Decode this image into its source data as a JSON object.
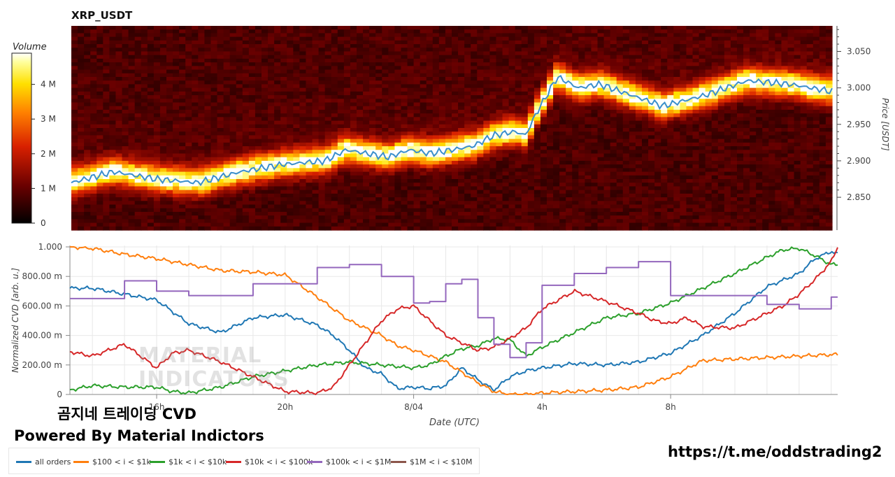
{
  "colors": {
    "all_orders": "#1f77b4",
    "b100_1k": "#ff7f0e",
    "b1k_10k": "#2ca02c",
    "b10k_100k": "#d62728",
    "b100k_1m": "#9467bd",
    "b1m_10m": "#8c564b",
    "price_line": "#3b8fcc",
    "heatmap_low": "#000000",
    "heatmap_high": "#ffffff"
  },
  "chart_data": [
    {
      "type": "heatmap",
      "title": "XRP_USDT",
      "ylabel": "Price [USDT]",
      "ylim": [
        2.805,
        3.085
      ],
      "yticks": [
        "2.850",
        "2.900",
        "2.950",
        "3.000",
        "3.050"
      ],
      "colorbar": {
        "title": "Volume",
        "range": [
          0,
          4.9
        ],
        "ticks": [
          "0",
          "1 M",
          "2 M",
          "3 M",
          "4 M"
        ]
      },
      "price_series": {
        "x": [
          0,
          2,
          4,
          6,
          8,
          10,
          12,
          13,
          14,
          15,
          16,
          17,
          18,
          19,
          20,
          21,
          21.5,
          22,
          23,
          24,
          25,
          26,
          27,
          28,
          30,
          32,
          34,
          36
        ],
        "y": [
          2.87,
          2.885,
          2.875,
          2.87,
          2.885,
          2.895,
          2.9,
          2.915,
          2.91,
          2.905,
          2.915,
          2.91,
          2.915,
          2.92,
          2.935,
          2.94,
          2.935,
          2.965,
          3.015,
          3.0,
          3.005,
          2.995,
          2.985,
          2.975,
          2.99,
          3.01,
          3.005,
          2.995
        ]
      }
    },
    {
      "type": "line",
      "xlabel": "Date (UTC)",
      "ylabel": "Normalized CVD [arb. u.]",
      "ylim": [
        0,
        1
      ],
      "xlim": [
        13.3,
        37.2
      ],
      "xticks": [
        {
          "x": 16,
          "label": "16h"
        },
        {
          "x": 20,
          "label": "20h"
        },
        {
          "x": 24,
          "label": "8/04"
        },
        {
          "x": 28,
          "label": "4h"
        },
        {
          "x": 32,
          "label": "8h"
        }
      ],
      "yticks": [
        "0",
        "200.00 m",
        "400.00 m",
        "600.00 m",
        "800.00 m",
        "1.000"
      ],
      "series": [
        {
          "name": "all orders",
          "x": [
            13.3,
            14,
            15,
            16,
            16.5,
            17,
            18,
            19,
            20,
            21,
            21.5,
            22,
            22.5,
            23,
            23.5,
            24,
            24.5,
            25,
            25.5,
            26,
            26.5,
            27,
            27.5,
            28,
            29,
            30,
            31,
            32,
            33,
            34,
            35,
            36,
            36.5,
            37,
            37.2
          ],
          "y": [
            0.72,
            0.72,
            0.68,
            0.64,
            0.56,
            0.48,
            0.42,
            0.52,
            0.54,
            0.47,
            0.4,
            0.3,
            0.18,
            0.14,
            0.04,
            0.05,
            0.04,
            0.06,
            0.18,
            0.1,
            0.03,
            0.12,
            0.16,
            0.18,
            0.21,
            0.2,
            0.22,
            0.28,
            0.4,
            0.55,
            0.73,
            0.82,
            0.92,
            0.97,
            0.95
          ]
        },
        {
          "name": "$100 < i < $1k",
          "x": [
            13.3,
            14,
            15,
            16,
            17,
            18,
            19,
            20,
            21,
            22,
            23,
            23.5,
            24,
            24.5,
            25,
            25.5,
            26,
            26.5,
            27,
            27.5,
            28,
            29,
            30,
            31,
            32,
            33,
            34,
            35,
            36,
            37,
            37.2
          ],
          "y": [
            1.0,
            0.99,
            0.95,
            0.92,
            0.88,
            0.84,
            0.83,
            0.81,
            0.66,
            0.5,
            0.4,
            0.33,
            0.3,
            0.26,
            0.22,
            0.15,
            0.08,
            0.02,
            0.0,
            0.0,
            0.01,
            0.02,
            0.03,
            0.05,
            0.12,
            0.23,
            0.24,
            0.25,
            0.26,
            0.27,
            0.27
          ]
        },
        {
          "name": "$1k < i < $10k",
          "x": [
            13.3,
            14,
            15,
            16,
            16.5,
            17,
            18,
            19,
            20,
            21,
            21.5,
            22,
            23,
            24,
            24.5,
            25,
            25.5,
            26,
            26.5,
            27,
            27.5,
            28,
            29,
            30,
            31,
            32,
            33,
            34,
            35,
            35.5,
            36,
            36.5,
            37,
            37.2
          ],
          "y": [
            0.03,
            0.06,
            0.05,
            0.05,
            0.02,
            0.01,
            0.05,
            0.12,
            0.16,
            0.2,
            0.21,
            0.22,
            0.2,
            0.18,
            0.2,
            0.26,
            0.31,
            0.33,
            0.38,
            0.37,
            0.26,
            0.32,
            0.42,
            0.52,
            0.55,
            0.62,
            0.72,
            0.82,
            0.93,
            0.98,
            0.99,
            0.94,
            0.88,
            0.88
          ]
        },
        {
          "name": "$10k < i < $100k",
          "x": [
            13.3,
            14,
            15,
            16,
            16.5,
            17,
            18,
            19,
            20,
            21,
            21.5,
            22,
            23,
            23.5,
            24,
            24.5,
            25,
            25.5,
            26,
            26.5,
            27,
            27.5,
            28,
            29,
            30,
            31,
            31.5,
            32,
            32.5,
            33,
            34,
            35,
            35.5,
            36,
            36.5,
            37,
            37.2
          ],
          "y": [
            0.29,
            0.26,
            0.34,
            0.18,
            0.28,
            0.3,
            0.22,
            0.12,
            0.02,
            0.01,
            0.05,
            0.2,
            0.5,
            0.58,
            0.6,
            0.5,
            0.4,
            0.35,
            0.3,
            0.32,
            0.38,
            0.45,
            0.58,
            0.7,
            0.63,
            0.55,
            0.5,
            0.48,
            0.52,
            0.46,
            0.45,
            0.55,
            0.6,
            0.68,
            0.78,
            0.9,
            1.0
          ]
        },
        {
          "name": "$100k < i < $1M",
          "x": [
            13.3,
            14,
            15,
            16,
            17,
            18,
            19,
            20,
            21,
            22,
            23,
            24,
            24.5,
            25,
            25.5,
            26,
            26.5,
            27,
            27.5,
            28,
            29,
            30,
            31,
            32,
            33,
            34,
            35,
            36,
            37,
            37.2
          ],
          "y": [
            0.65,
            0.65,
            0.77,
            0.7,
            0.67,
            0.67,
            0.75,
            0.75,
            0.86,
            0.88,
            0.8,
            0.62,
            0.63,
            0.75,
            0.78,
            0.52,
            0.34,
            0.25,
            0.35,
            0.74,
            0.82,
            0.86,
            0.9,
            0.67,
            0.67,
            0.67,
            0.61,
            0.58,
            0.66,
            0.66
          ]
        },
        {
          "name": "$1M < i < $10M",
          "x": [],
          "y": []
        }
      ]
    }
  ],
  "branding": {
    "subtitle": "곰지네 트레이딩 CVD",
    "powered": "Powered By Material Indictors",
    "url": "https://t.me/oddstrading2",
    "watermark_line1": "MATERIAL",
    "watermark_line2": "INDICATORS"
  },
  "legend": [
    {
      "label": "all orders",
      "color_key": "all_orders"
    },
    {
      "label": "$100 < i < $1k",
      "color_key": "b100_1k"
    },
    {
      "label": "$1k < i < $10k",
      "color_key": "b1k_10k"
    },
    {
      "label": "$10k < i < $100k",
      "color_key": "b10k_100k"
    },
    {
      "label": "$100k < i < $1M",
      "color_key": "b100k_1m"
    },
    {
      "label": "$1M < i < $10M",
      "color_key": "b1m_10m"
    }
  ]
}
